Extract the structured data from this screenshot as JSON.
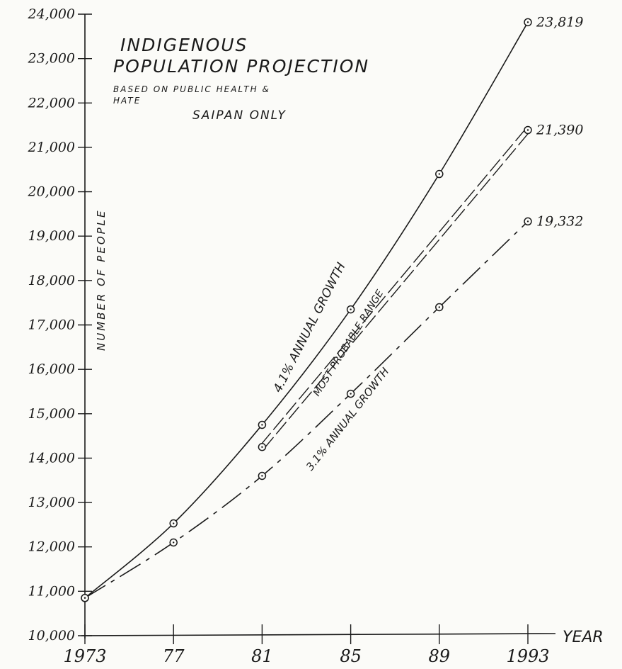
{
  "chart_data": {
    "type": "line",
    "title": "INDIGENOUS POPULATION PROJECTION",
    "subtitle_lines": [
      "BASED ON PUBLIC HEALTH &",
      "HATE"
    ],
    "note": "SAIPAN ONLY",
    "xlabel": "YEAR",
    "ylabel": "NUMBER OF PEOPLE",
    "x_tick_labels": [
      "1973",
      "77",
      "81",
      "85",
      "89",
      "1993"
    ],
    "y_tick_labels": [
      "10,000",
      "11,000",
      "12,000",
      "13,000",
      "14,000",
      "15,000",
      "16,000",
      "17,000",
      "18,000",
      "19,000",
      "20,000",
      "21,000",
      "22,000",
      "23,000",
      "24,000"
    ],
    "xlim": [
      1973,
      1993
    ],
    "ylim": [
      10000,
      24000
    ],
    "grid": false,
    "series": [
      {
        "name": "4.1% ANNUAL GROWTH",
        "style": "solid",
        "x": [
          1973,
          1977,
          1981,
          1985,
          1989,
          1993
        ],
        "y": [
          10850,
          12530,
          14750,
          17350,
          20400,
          23819
        ],
        "end_label": "23,819"
      },
      {
        "name": "MOST PROBABLE RANGE",
        "style": "double-dashed",
        "x": [
          1981,
          1993
        ],
        "y": [
          14250,
          21390
        ],
        "end_label": "21,390"
      },
      {
        "name": "3.1% ANNUAL GROWTH",
        "style": "dashed",
        "x": [
          1973,
          1977,
          1981,
          1985,
          1989,
          1993
        ],
        "y": [
          10850,
          12100,
          13600,
          15450,
          17400,
          19332
        ],
        "end_label": "19,332"
      }
    ]
  }
}
